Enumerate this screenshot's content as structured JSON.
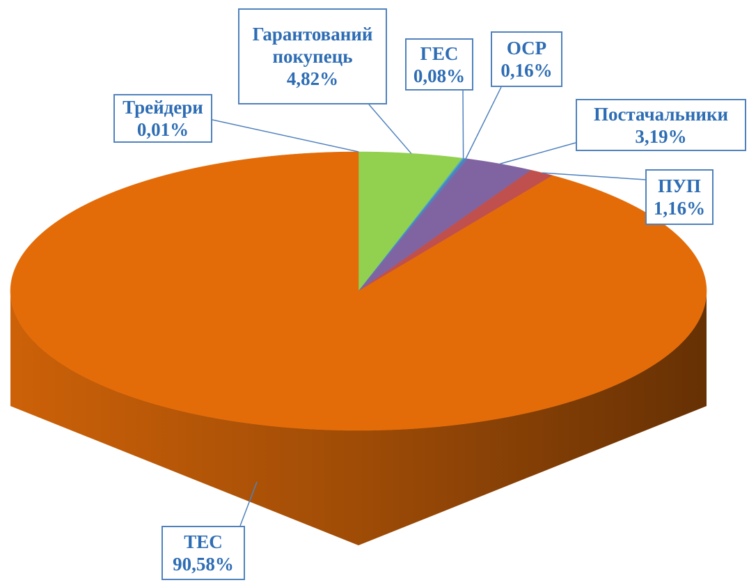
{
  "chart_data": {
    "type": "pie3d",
    "categories": [
      "Трейдери",
      "Гарантований покупець",
      "ГЕС",
      "ОСР",
      "Постачальники",
      "ПУП",
      "ТЕС"
    ],
    "values": [
      0.01,
      4.82,
      0.08,
      0.16,
      3.19,
      1.16,
      90.58
    ],
    "value_labels": [
      "0,01%",
      "4,82%",
      "0,08%",
      "0,16%",
      "3,19%",
      "1,16%",
      "90,58%"
    ],
    "colors": [
      "#f79646",
      "#92d050",
      "#4bacc6",
      "#4f81bd",
      "#8064a2",
      "#c0504d",
      "#e36c09"
    ]
  }
}
